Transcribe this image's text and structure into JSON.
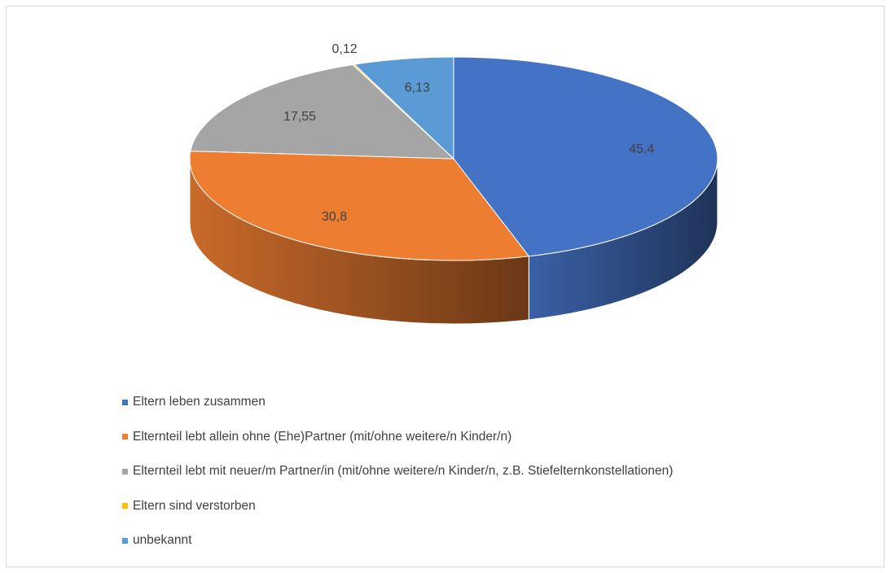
{
  "chart_data": {
    "type": "pie",
    "title": "",
    "categories": [
      "Eltern leben zusammen",
      "Elternteil lebt allein ohne (Ehe)Partner (mit/ohne weitere/n Kinder/n)",
      "Elternteil lebt mit neuer/m Partner/in (mit/ohne weitere/n Kinder/n, z.B. Stiefelternkonstellationen)",
      "Eltern sind verstorben",
      "unbekannt"
    ],
    "values": [
      45.4,
      30.8,
      17.55,
      0.12,
      6.13
    ],
    "value_labels": [
      "45,4",
      "30,8",
      "17,55",
      "0,12",
      "6,13"
    ],
    "colors": [
      "#4472c4",
      "#ed7d31",
      "#a5a5a5",
      "#ffc000",
      "#5b9bd5"
    ],
    "style": "3d",
    "legend_position": "bottom-left"
  }
}
